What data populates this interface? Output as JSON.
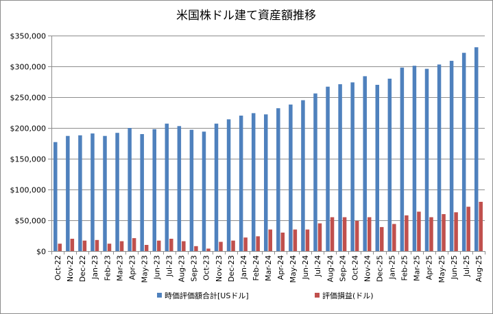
{
  "chart_data": {
    "type": "bar",
    "title": "米国株ドル建て資産額推移",
    "xlabel": "",
    "ylabel": "",
    "ylim": [
      0,
      350000
    ],
    "yticks": [
      "$0",
      "$50,000",
      "$100,000",
      "$150,000",
      "$200,000",
      "$250,000",
      "$300,000",
      "$350,000"
    ],
    "ytick_values": [
      0,
      50000,
      100000,
      150000,
      200000,
      250000,
      300000,
      350000
    ],
    "grid": true,
    "legend_position": "bottom",
    "categories": [
      "Oct-22",
      "Nov-22",
      "Dec-22",
      "Jan-23",
      "Feb-23",
      "Mar-23",
      "Apr-23",
      "May-23",
      "Jun-23",
      "Jul-23",
      "Aug-23",
      "Sep-23",
      "Oct-23",
      "Nov-23",
      "Dec-23",
      "Jan-24",
      "Feb-24",
      "Mar-24",
      "Apr-24",
      "May-24",
      "Jun-24",
      "Jul-24",
      "Aug-24",
      "Sep-24",
      "Oct-24",
      "Nov-24",
      "Dec-25",
      "Jan-25",
      "Feb-25",
      "Mar-25",
      "Apr-25",
      "May-25",
      "Jun-25",
      "Jul-25",
      "Aug-25"
    ],
    "series": [
      {
        "name": "時価評価額合計[USドル]",
        "color": "#4f81bd",
        "values": [
          177000,
          187000,
          188000,
          191000,
          187000,
          192000,
          200000,
          190000,
          198000,
          207000,
          203000,
          197000,
          194000,
          207000,
          214000,
          220000,
          224000,
          222000,
          232000,
          238000,
          245000,
          256000,
          267000,
          271000,
          274000,
          284000,
          270000,
          280000,
          298000,
          301000,
          296000,
          303000,
          309000,
          322000,
          331000
        ]
      },
      {
        "name": "評価損益(ドル)",
        "color": "#c0504d",
        "values": [
          12000,
          20000,
          17000,
          18000,
          12000,
          16000,
          21000,
          10000,
          17000,
          20000,
          16000,
          8000,
          4000,
          15000,
          17000,
          22000,
          24000,
          35000,
          30000,
          35000,
          35000,
          45000,
          55000,
          55000,
          49000,
          55000,
          39000,
          44000,
          58000,
          64000,
          55000,
          60000,
          63000,
          72000,
          80000
        ]
      }
    ]
  }
}
